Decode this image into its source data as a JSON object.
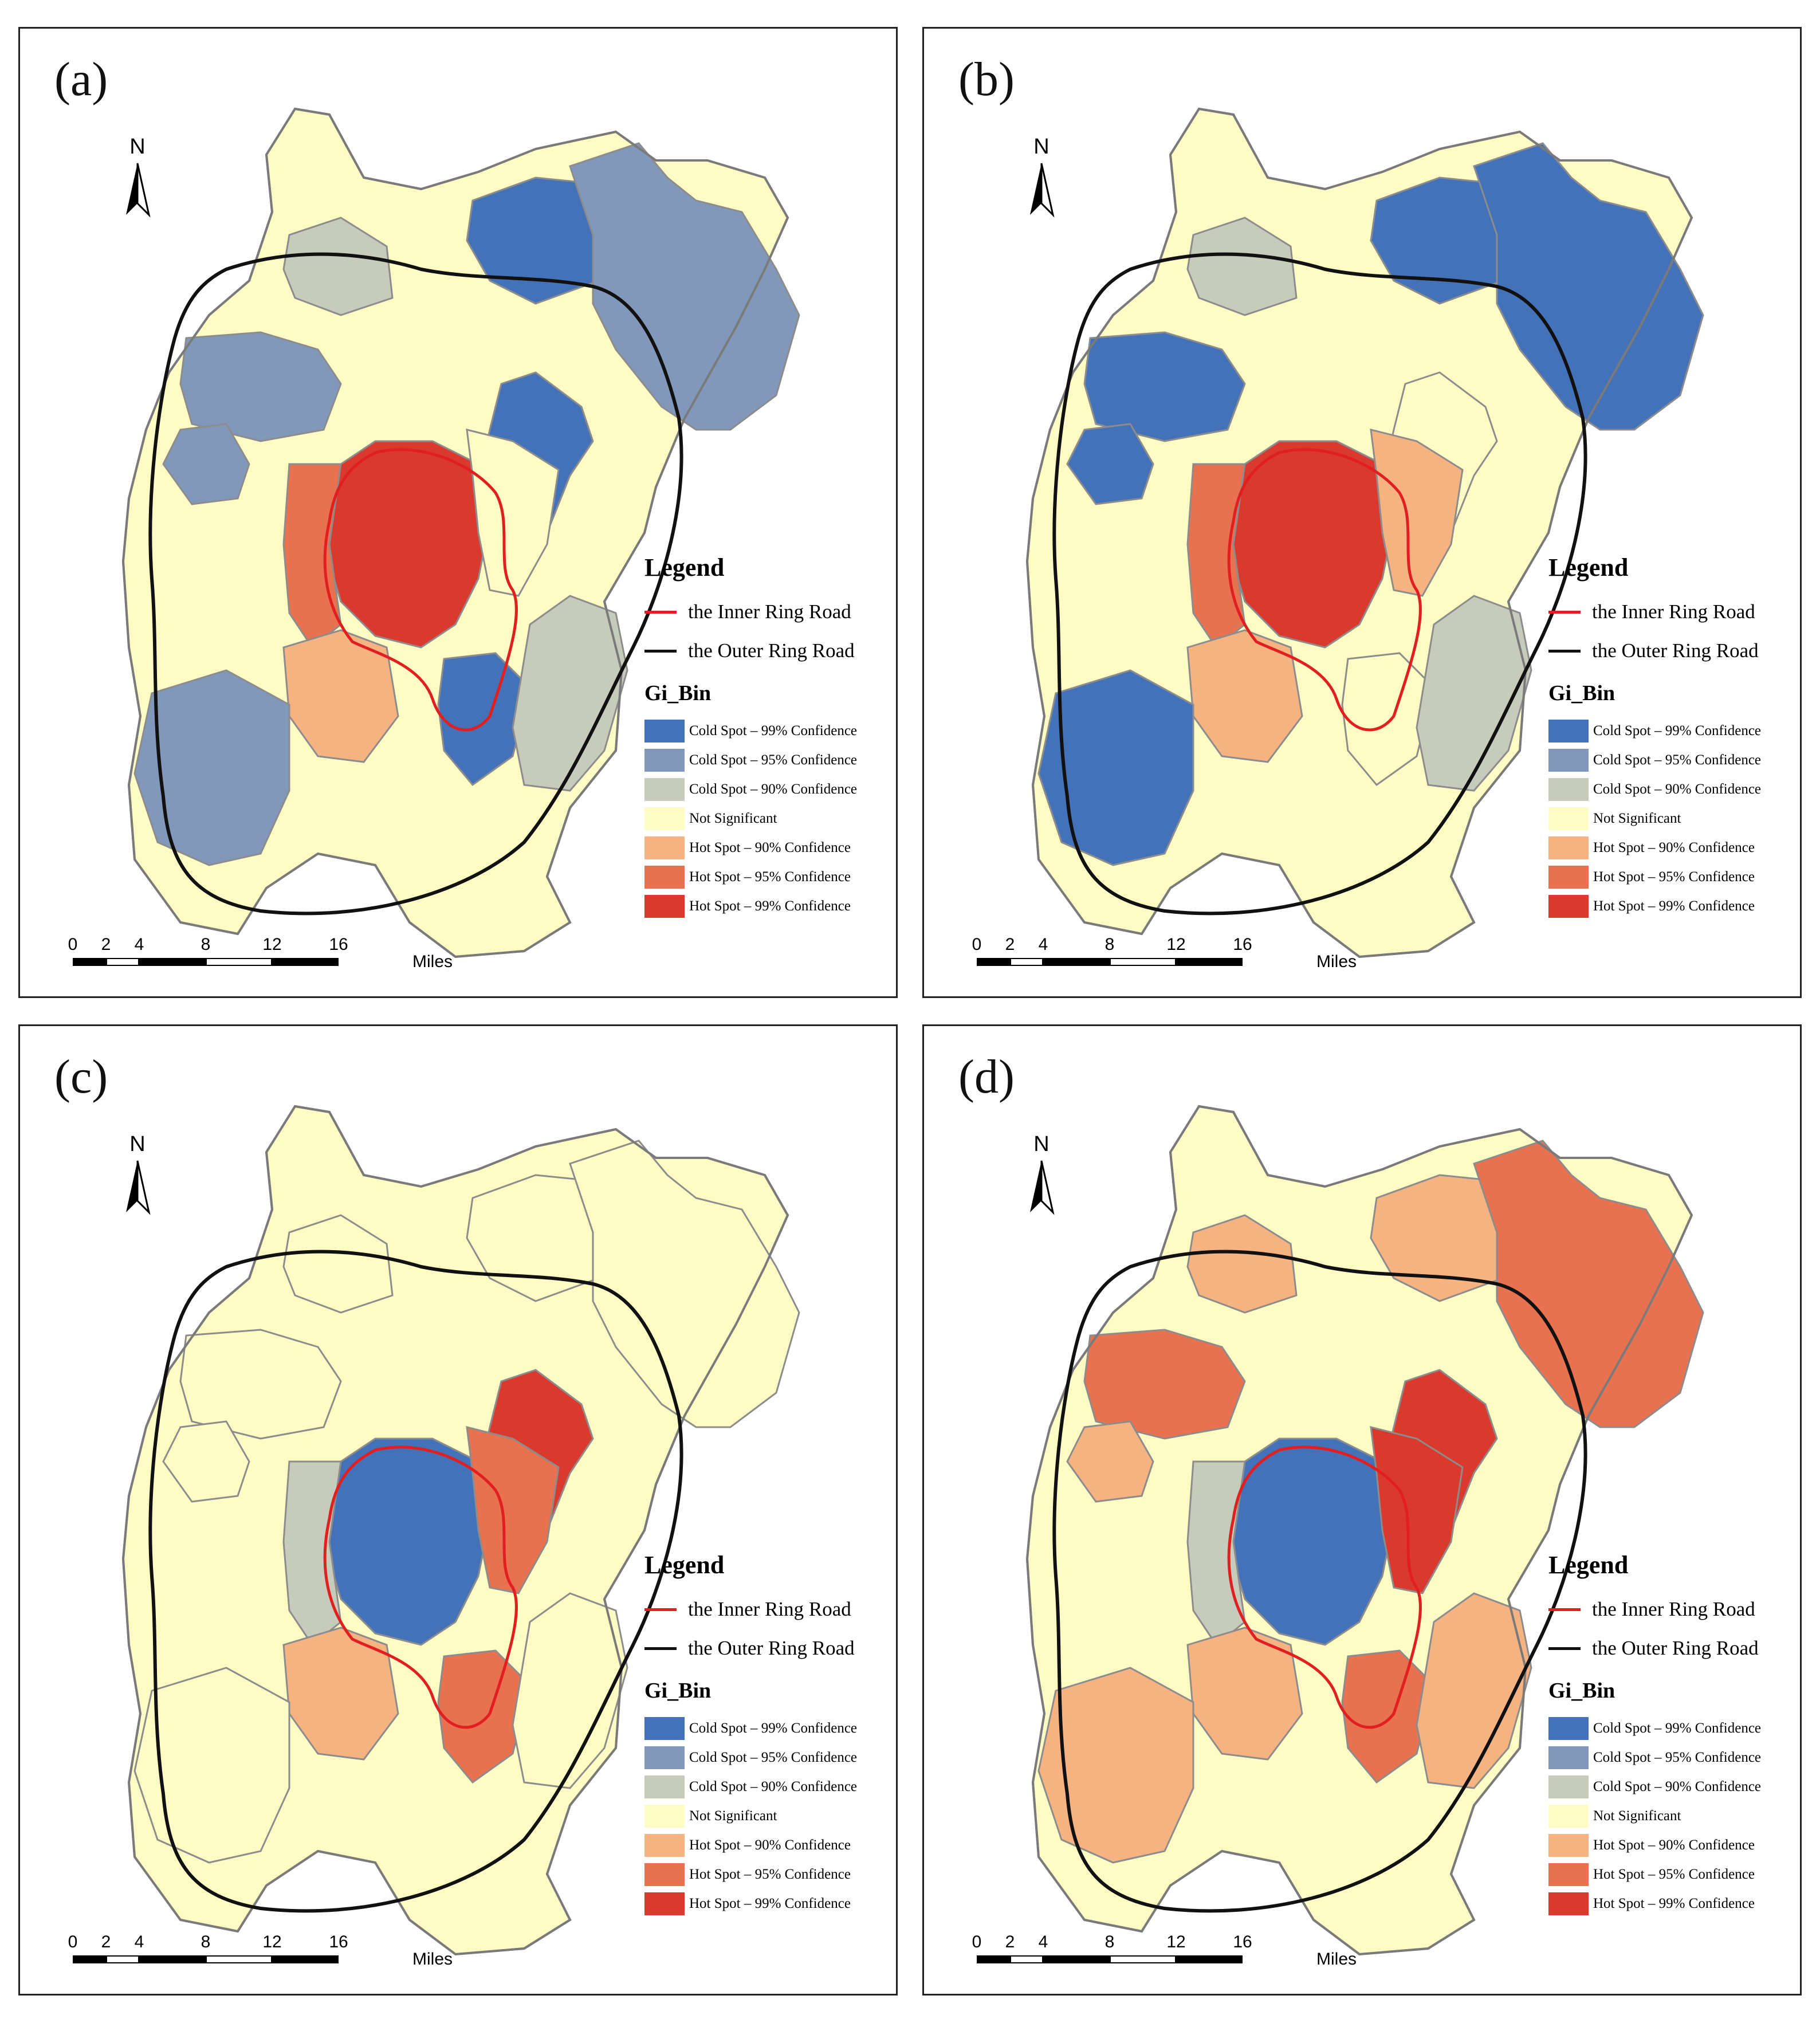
{
  "panels": [
    {
      "label": "(a)",
      "scheme": [
        "cold95",
        "cold95",
        "cold99",
        "cold90",
        "cold95",
        "cold99",
        "hot99",
        "hot95",
        "ns",
        "cold99",
        "hot90",
        "cold95",
        "cold90"
      ]
    },
    {
      "label": "(b)",
      "scheme": [
        "cold99",
        "cold99",
        "cold99",
        "cold90",
        "cold99",
        "ns",
        "hot99",
        "hot95",
        "hot90",
        "ns",
        "hot90",
        "cold99",
        "cold90"
      ]
    },
    {
      "label": "(c)",
      "scheme": [
        "ns",
        "ns",
        "ns",
        "ns",
        "ns",
        "hot99",
        "cold99",
        "cold90",
        "hot95",
        "hot95",
        "hot90",
        "ns",
        "ns"
      ]
    },
    {
      "label": "(d)",
      "scheme": [
        "hot95",
        "hot90",
        "hot90",
        "hot90",
        "hot95",
        "hot99",
        "cold99",
        "cold90",
        "hot99",
        "hot95",
        "hot90",
        "hot90",
        "hot90"
      ]
    }
  ],
  "north_label": "N",
  "legend": {
    "title": "Legend",
    "inner_ring": "the Inner Ring Road",
    "outer_ring": "the Outer Ring Road",
    "field": "Gi_Bin",
    "classes": [
      {
        "key": "cold99",
        "label": "Cold Spot – 99% Confidence",
        "color": "#4472b8"
      },
      {
        "key": "cold95",
        "label": "Cold Spot – 95% Confidence",
        "color": "#8198ba"
      },
      {
        "key": "cold90",
        "label": "Cold Spot – 90% Confidence",
        "color": "#c6cbbb"
      },
      {
        "key": "ns",
        "label": "Not Significant",
        "color": "#fefcc4"
      },
      {
        "key": "hot90",
        "label": "Hot Spot – 90% Confidence",
        "color": "#f6b382"
      },
      {
        "key": "hot95",
        "label": "Hot Spot – 95% Confidence",
        "color": "#e8714f"
      },
      {
        "key": "hot99",
        "label": "Hot Spot – 99% Confidence",
        "color": "#d93a2d"
      }
    ],
    "inner_ring_color": "#e02020",
    "outer_ring_color": "#111111"
  },
  "scalebar": {
    "ticks": [
      "0",
      "2",
      "4",
      "8",
      "12",
      "16"
    ],
    "unit": "Miles"
  }
}
